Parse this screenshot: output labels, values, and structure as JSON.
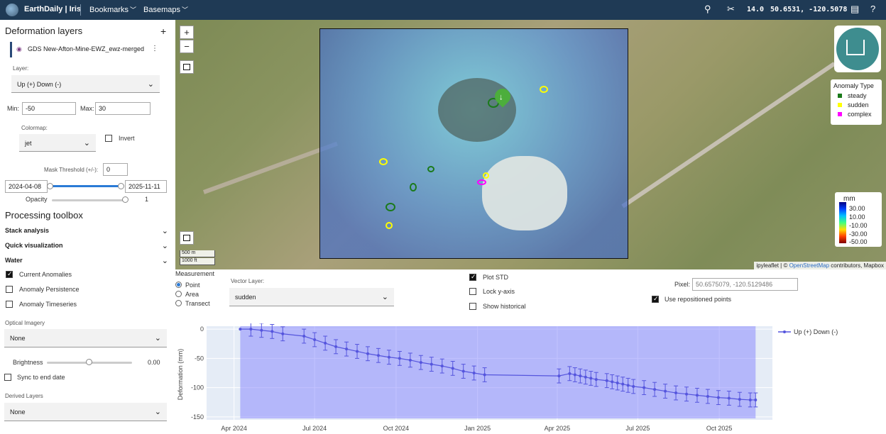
{
  "topbar": {
    "brand": "EarthDaily | Iris",
    "menu_bookmarks": "Bookmarks",
    "menu_basemaps": "Basemaps",
    "zoom_level": "14.0",
    "coords": "50.6531, -120.5078"
  },
  "sidebar": {
    "title": "Deformation layers",
    "add_label": "+",
    "layer_name": "GDS New-Afton-Mine-EWZ_ewz-merged",
    "layer_label": "Layer:",
    "layer_value": "Up (+) Down (-)",
    "min_label": "Min:",
    "min_value": "-50",
    "max_label": "Max:",
    "max_value": "30",
    "colormap_label": "Colormap:",
    "colormap_value": "jet",
    "invert_label": "Invert",
    "mask_label": "Mask Threshold (+/-):",
    "mask_value": "0",
    "date_start": "2024-04-08",
    "date_end": "2025-11-11",
    "opacity_label": "Opacity",
    "opacity_value": "1",
    "toolbox_title": "Processing toolbox",
    "sections": [
      "Stack analysis",
      "Quick visualization",
      "Water"
    ],
    "checks": [
      {
        "label": "Current Anomalies",
        "checked": true
      },
      {
        "label": "Anomaly Persistence",
        "checked": false
      },
      {
        "label": "Anomaly Timeseries",
        "checked": false
      }
    ],
    "optical_label": "Optical Imagery",
    "optical_value": "None",
    "brightness_label": "Brightness",
    "brightness_value": "0.00",
    "sync_label": "Sync to end date",
    "derived_label": "Derived Layers",
    "derived_value": "None"
  },
  "map": {
    "zoom_in": "+",
    "zoom_out": "−",
    "legend_title": "Anomaly Type",
    "legend_items": [
      {
        "label": "steady",
        "color": "#1a7a1a"
      },
      {
        "label": "sudden",
        "color": "#ffff00"
      },
      {
        "label": "complex",
        "color": "#ff00ff"
      }
    ],
    "colorbar_unit": "mm",
    "colorbar_ticks": [
      "30.00",
      "10.00",
      "-10.00",
      "-30.00",
      "-50.00"
    ],
    "scale_m": "500 m",
    "scale_ft": "1000 ft",
    "attrib_prefix": "ipyleaflet | © ",
    "attrib_osm": "OpenStreetMap",
    "attrib_suffix": " contributors, Mapbox"
  },
  "controls": {
    "measurement_label": "Measurement",
    "measurement_options": [
      "Point",
      "Area",
      "Transect"
    ],
    "measurement_selected": "Point",
    "vector_label": "Vector Layer:",
    "vector_value": "sudden",
    "plot_std_label": "Plot STD",
    "lock_y_label": "Lock y-axis",
    "show_hist_label": "Show historical",
    "pixel_label": "Pixel:",
    "pixel_value": "50.6575079, -120.5129486",
    "repositioned_label": "Use repositioned points"
  },
  "chart_data": {
    "type": "line",
    "title": "",
    "xlabel": "",
    "ylabel": "Deformation (mm)",
    "ylim": [
      -155,
      5
    ],
    "yticks": [
      0,
      -50,
      -100,
      -150
    ],
    "xticks": [
      {
        "label": "Apr 2024",
        "date": "2024-04-01"
      },
      {
        "label": "Jul 2024",
        "date": "2024-07-01"
      },
      {
        "label": "Oct 2024",
        "date": "2024-10-01"
      },
      {
        "label": "Jan 2025",
        "date": "2025-01-01"
      },
      {
        "label": "Apr 2025",
        "date": "2025-04-01"
      },
      {
        "label": "Jul 2025",
        "date": "2025-07-01"
      },
      {
        "label": "Oct 2025",
        "date": "2025-10-01"
      }
    ],
    "xrange": [
      "2024-03-01",
      "2025-11-30"
    ],
    "shaded_range": [
      "2024-04-08",
      "2025-11-11"
    ],
    "legend_position": "top-right",
    "series": [
      {
        "name": "Up (+) Down (-)",
        "color": "#5555dd",
        "x": [
          "2024-04-08",
          "2024-04-20",
          "2024-05-02",
          "2024-05-14",
          "2024-05-26",
          "2024-06-19",
          "2024-07-01",
          "2024-07-13",
          "2024-07-25",
          "2024-08-06",
          "2024-08-18",
          "2024-08-30",
          "2024-09-11",
          "2024-09-23",
          "2024-10-05",
          "2024-10-17",
          "2024-10-29",
          "2024-11-10",
          "2024-11-22",
          "2024-12-04",
          "2024-12-16",
          "2024-12-28",
          "2025-01-09",
          "2025-04-03",
          "2025-04-15",
          "2025-04-21",
          "2025-04-27",
          "2025-05-03",
          "2025-05-09",
          "2025-05-15",
          "2025-05-27",
          "2025-06-02",
          "2025-06-08",
          "2025-06-14",
          "2025-06-20",
          "2025-06-26",
          "2025-07-08",
          "2025-07-20",
          "2025-08-01",
          "2025-08-13",
          "2025-08-25",
          "2025-09-06",
          "2025-09-18",
          "2025-09-30",
          "2025-10-12",
          "2025-10-24",
          "2025-11-05",
          "2025-11-11"
        ],
        "y": [
          0,
          0,
          -2,
          -4,
          -8,
          -12,
          -18,
          -24,
          -30,
          -34,
          -38,
          -42,
          -45,
          -48,
          -50,
          -53,
          -57,
          -60,
          -63,
          -67,
          -72,
          -75,
          -78,
          -80,
          -76,
          -78,
          -80,
          -82,
          -84,
          -86,
          -88,
          -90,
          -92,
          -94,
          -96,
          -98,
          -100,
          -103,
          -106,
          -109,
          -111,
          -113,
          -115,
          -117,
          -118,
          -120,
          -121,
          -121
        ],
        "error": 12
      }
    ]
  }
}
